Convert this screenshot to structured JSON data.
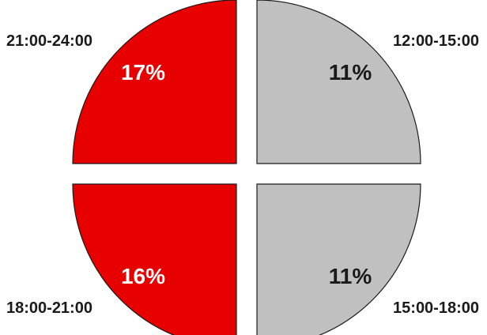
{
  "chart_data": {
    "type": "pie",
    "title": "",
    "slices": [
      {
        "category": "12:00-15:00",
        "label": "11%",
        "value": 11,
        "color": "#c0c0c0",
        "label_color": "#1a1a1a"
      },
      {
        "category": "15:00-18:00",
        "label": "11%",
        "value": 11,
        "color": "#c0c0c0",
        "label_color": "#1a1a1a"
      },
      {
        "category": "18:00-21:00",
        "label": "16%",
        "value": 16,
        "color": "#e60000",
        "label_color": "#ffffff"
      },
      {
        "category": "21:00-24:00",
        "label": "17%",
        "value": 17,
        "color": "#e60000",
        "label_color": "#ffffff"
      }
    ]
  }
}
